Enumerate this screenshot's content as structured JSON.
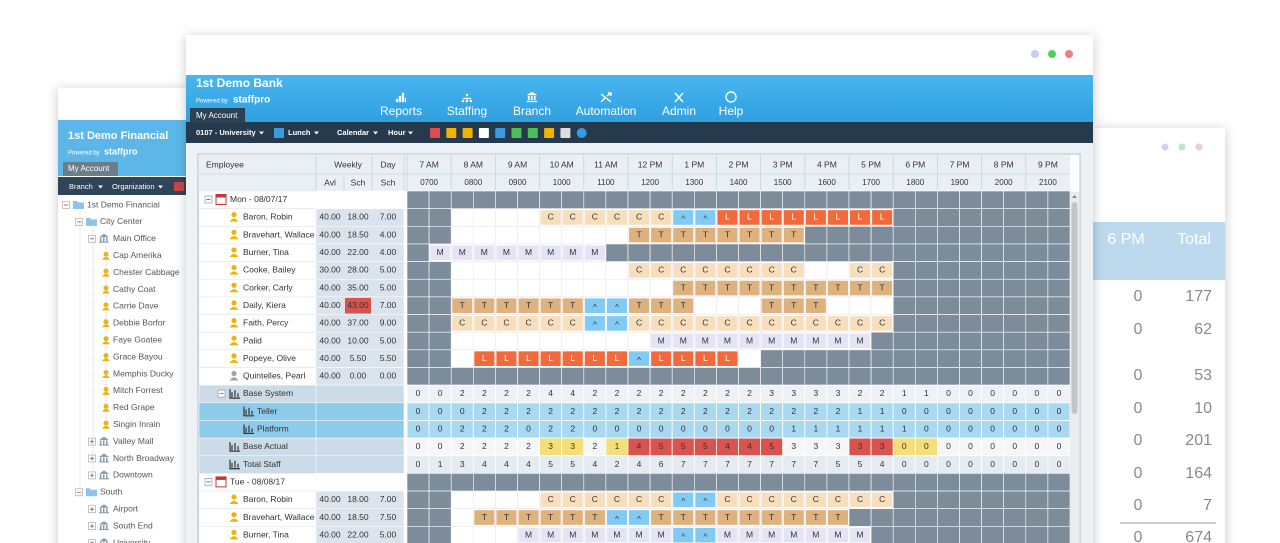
{
  "back_left": {
    "title": "1st Demo Financial",
    "powered": "Powered by",
    "brand": "staffpro",
    "tab": "My Account",
    "toolbar": [
      "Branch",
      "Organization"
    ],
    "tree": [
      {
        "label": "1st Demo Financial",
        "children": [
          {
            "label": "City Center",
            "children": [
              {
                "label": "Main Office",
                "children": [
                  {
                    "label": "Cap Amerika"
                  },
                  {
                    "label": "Chester Cabbage"
                  },
                  {
                    "label": "Cathy Coat"
                  },
                  {
                    "label": "Carrie Dave"
                  },
                  {
                    "label": "Debbie Borfor"
                  },
                  {
                    "label": "Faye Goatee"
                  },
                  {
                    "label": "Grace Bayou"
                  },
                  {
                    "label": "Memphis Ducky"
                  },
                  {
                    "label": "Mitch Forrest"
                  },
                  {
                    "label": "Red Grape"
                  },
                  {
                    "label": "Singin Inrain"
                  }
                ]
              },
              {
                "label": "Valley Mall",
                "children": []
              },
              {
                "label": "North Broadway",
                "children": []
              },
              {
                "label": "Downtown",
                "children": []
              }
            ]
          },
          {
            "label": "South",
            "children": [
              {
                "label": "Airport",
                "children": []
              },
              {
                "label": "South End",
                "children": []
              },
              {
                "label": "University",
                "children": []
              }
            ]
          }
        ]
      }
    ]
  },
  "back_right": {
    "headers": [
      "6 PM",
      "Total"
    ],
    "rows": [
      [
        "0",
        "177"
      ],
      [
        "0",
        "62"
      ],
      [
        "0",
        "53"
      ],
      [
        "0",
        "10"
      ],
      [
        "0",
        "201"
      ],
      [
        "0",
        "164"
      ],
      [
        "0",
        "7"
      ],
      [
        "0",
        "674"
      ]
    ]
  },
  "main": {
    "title": "1st Demo Bank",
    "powered": "Powered by",
    "brand": "staffpro",
    "tab": "My Account",
    "nav": [
      "Reports",
      "Staffing",
      "Branch",
      "Automation",
      "Admin",
      "Help"
    ],
    "toolbar": [
      "0107 - University",
      "Lunch",
      "Calendar",
      "Hour"
    ],
    "grid": {
      "header1": [
        "Employee",
        "Weekly",
        "Day"
      ],
      "header2": [
        "Avl",
        "Sch",
        "Sch"
      ],
      "hours": [
        "7 AM",
        "8 AM",
        "9 AM",
        "10 AM",
        "11 AM",
        "12 PM",
        "1 PM",
        "2 PM",
        "3 PM",
        "4 PM",
        "5 PM",
        "6 PM",
        "7 PM",
        "8 PM",
        "9 PM"
      ],
      "times": [
        "0700",
        "0800",
        "0900",
        "1000",
        "1100",
        "1200",
        "1300",
        "1400",
        "1500",
        "1600",
        "1700",
        "1800",
        "1900",
        "2000",
        "2100"
      ],
      "groups": [
        {
          "label": "Mon - 08/07/17",
          "employees": [
            {
              "name": "Baron, Robin",
              "avl": "40.00",
              "sch": "18.00",
              "day": "7.00",
              "cells": [
                null,
                null,
                null,
                null,
                null,
                null,
                "C",
                "C",
                "C",
                "C",
                "C",
                "C",
                "^",
                "^",
                "L",
                "L",
                "L",
                "L",
                "L",
                "L",
                "L",
                "L",
                null,
                null,
                null,
                null,
                null,
                null,
                null,
                null
              ]
            },
            {
              "name": "Bravehart, Wallace",
              "avl": "40.00",
              "sch": "18.50",
              "day": "4.00",
              "cells": [
                null,
                null,
                null,
                null,
                null,
                null,
                null,
                null,
                null,
                null,
                "T",
                "T",
                "T",
                "T",
                "T",
                "T",
                "T",
                "T",
                null,
                null,
                null,
                null,
                null,
                null,
                null,
                null,
                null,
                null,
                null,
                null
              ]
            },
            {
              "name": "Burner, Tina",
              "avl": "40.00",
              "sch": "22.00",
              "day": "4.00",
              "cells": [
                null,
                "M",
                "M",
                "M",
                "M",
                "M",
                "M",
                "M",
                "M",
                null,
                null,
                null,
                null,
                null,
                null,
                null,
                null,
                null,
                null,
                null,
                null,
                null,
                null,
                null,
                null,
                null,
                null,
                null,
                null,
                null
              ]
            },
            {
              "name": "Cooke, Bailey",
              "avl": "30.00",
              "sch": "28.00",
              "day": "5.00",
              "cells": [
                null,
                null,
                null,
                null,
                null,
                null,
                null,
                null,
                null,
                null,
                "C",
                "C",
                "C",
                "C",
                "C",
                "C",
                "C",
                "C",
                null,
                null,
                "C",
                "C",
                null,
                null,
                null,
                null,
                null,
                null,
                null,
                null
              ]
            },
            {
              "name": "Corker, Carly",
              "avl": "40.00",
              "sch": "35.00",
              "day": "5.00",
              "cells": [
                null,
                null,
                null,
                null,
                null,
                null,
                null,
                null,
                null,
                null,
                null,
                null,
                "T",
                "T",
                "T",
                "T",
                "T",
                "T",
                "T",
                "T",
                "T",
                "T",
                null,
                null,
                null,
                null,
                null,
                null,
                null,
                null
              ]
            },
            {
              "name": "Daily, Kiera",
              "avl": "40.00",
              "sch": "43.00",
              "day": "7.00",
              "cells": [
                null,
                null,
                "T",
                "T",
                "T",
                "T",
                "T",
                "T",
                "^",
                "^",
                "T",
                "T",
                "T",
                null,
                null,
                null,
                "T",
                "T",
                "T",
                null,
                null,
                null,
                null,
                null,
                null,
                null,
                null,
                null,
                null,
                null
              ]
            },
            {
              "name": "Faith, Percy",
              "avl": "40.00",
              "sch": "37.00",
              "day": "9.00",
              "cells": [
                null,
                null,
                "C",
                "C",
                "C",
                "C",
                "C",
                "C",
                "^",
                "^",
                "C",
                "C",
                "C",
                "C",
                "C",
                "C",
                "C",
                "C",
                "C",
                "C",
                "C",
                "C",
                null,
                null,
                null,
                null,
                null,
                null,
                null,
                null
              ]
            },
            {
              "name": "Palid",
              "avl": "40.00",
              "sch": "10.00",
              "day": "5.00",
              "cells": [
                null,
                null,
                null,
                null,
                null,
                null,
                null,
                null,
                null,
                null,
                null,
                "M",
                "M",
                "M",
                "M",
                "M",
                "M",
                "M",
                "M",
                "M",
                "M",
                null,
                null,
                null,
                null,
                null,
                null,
                null,
                null,
                null
              ]
            },
            {
              "name": "Popeye, Olive",
              "avl": "40.00",
              "sch": "5.50",
              "day": "5.50",
              "cells": [
                null,
                null,
                null,
                "L",
                "L",
                "L",
                "L",
                "L",
                "L",
                "L",
                "^",
                "L",
                "L",
                "L",
                "L",
                null,
                null,
                null,
                null,
                null,
                null,
                null,
                null,
                null,
                null,
                null,
                null,
                null,
                null,
                null
              ]
            },
            {
              "name": "Quintelles, Pearl",
              "avl": "40.00",
              "sch": "0.00",
              "day": "0.00",
              "cells": [
                null,
                null,
                null,
                null,
                null,
                null,
                null,
                null,
                null,
                null,
                null,
                null,
                null,
                null,
                null,
                null,
                null,
                null,
                null,
                null,
                null,
                null,
                null,
                null,
                null,
                null,
                null,
                null,
                null,
                null
              ]
            }
          ],
          "summary": [
            {
              "label": "Base System",
              "values": [
                0,
                0,
                2,
                2,
                2,
                2,
                4,
                4,
                2,
                2,
                2,
                2,
                2,
                2,
                2,
                2,
                3,
                3,
                3,
                3,
                2,
                2,
                1,
                1,
                0,
                0,
                0,
                0,
                0,
                0
              ],
              "children": [
                {
                  "label": "Teller",
                  "values": [
                    0,
                    0,
                    0,
                    2,
                    2,
                    2,
                    2,
                    2,
                    2,
                    2,
                    2,
                    2,
                    2,
                    2,
                    2,
                    2,
                    2,
                    2,
                    2,
                    2,
                    1,
                    1,
                    0,
                    0,
                    0,
                    0,
                    0,
                    0,
                    0,
                    0
                  ]
                },
                {
                  "label": "Platform",
                  "values": [
                    0,
                    0,
                    2,
                    2,
                    2,
                    0,
                    2,
                    2,
                    0,
                    0,
                    0,
                    0,
                    0,
                    0,
                    0,
                    0,
                    0,
                    1,
                    1,
                    1,
                    1,
                    1,
                    1,
                    0,
                    0,
                    0,
                    0,
                    0,
                    0,
                    0
                  ]
                }
              ]
            },
            {
              "label": "Base Actual",
              "values": [
                0,
                0,
                2,
                2,
                2,
                2,
                3,
                3,
                2,
                1,
                4,
                5,
                5,
                5,
                4,
                4,
                5,
                3,
                3,
                3,
                3,
                3,
                0,
                0,
                0,
                0,
                0,
                0,
                0,
                0
              ]
            },
            {
              "label": "Total Staff",
              "values": [
                0,
                1,
                3,
                4,
                4,
                4,
                5,
                5,
                4,
                2,
                4,
                6,
                7,
                7,
                7,
                7,
                7,
                7,
                7,
                5,
                5,
                4,
                0,
                0,
                0,
                0,
                0,
                0,
                0,
                0
              ]
            }
          ]
        },
        {
          "label": "Tue - 08/08/17",
          "employees": [
            {
              "name": "Baron, Robin",
              "avl": "40.00",
              "sch": "18.00",
              "day": "7.00",
              "cells": [
                null,
                null,
                null,
                null,
                null,
                null,
                "C",
                "C",
                "C",
                "C",
                "C",
                "C",
                "^",
                "^",
                "C",
                "C",
                "C",
                "C",
                "C",
                "C",
                "C",
                "C",
                null,
                null,
                null,
                null,
                null,
                null,
                null,
                null
              ]
            },
            {
              "name": "Bravehart, Wallace",
              "avl": "40.00",
              "sch": "18.50",
              "day": "7.50",
              "cells": [
                null,
                null,
                null,
                "T",
                "T",
                "T",
                "T",
                "T",
                "T",
                "^",
                "^",
                "T",
                "T",
                "T",
                "T",
                "T",
                "T",
                "T",
                "T",
                "T",
                null,
                null,
                null,
                null,
                null,
                null,
                null,
                null,
                null,
                null
              ]
            },
            {
              "name": "Burner, Tina",
              "avl": "40.00",
              "sch": "22.00",
              "day": "5.00",
              "cells": [
                null,
                null,
                null,
                null,
                null,
                "M",
                "M",
                "M",
                "M",
                "M",
                "M",
                "M",
                "^",
                "^",
                "M",
                "M",
                "M",
                "M",
                "M",
                "M",
                "M",
                null,
                null,
                null,
                null,
                null,
                null,
                null,
                null,
                null
              ]
            }
          ],
          "summary": []
        }
      ]
    }
  }
}
